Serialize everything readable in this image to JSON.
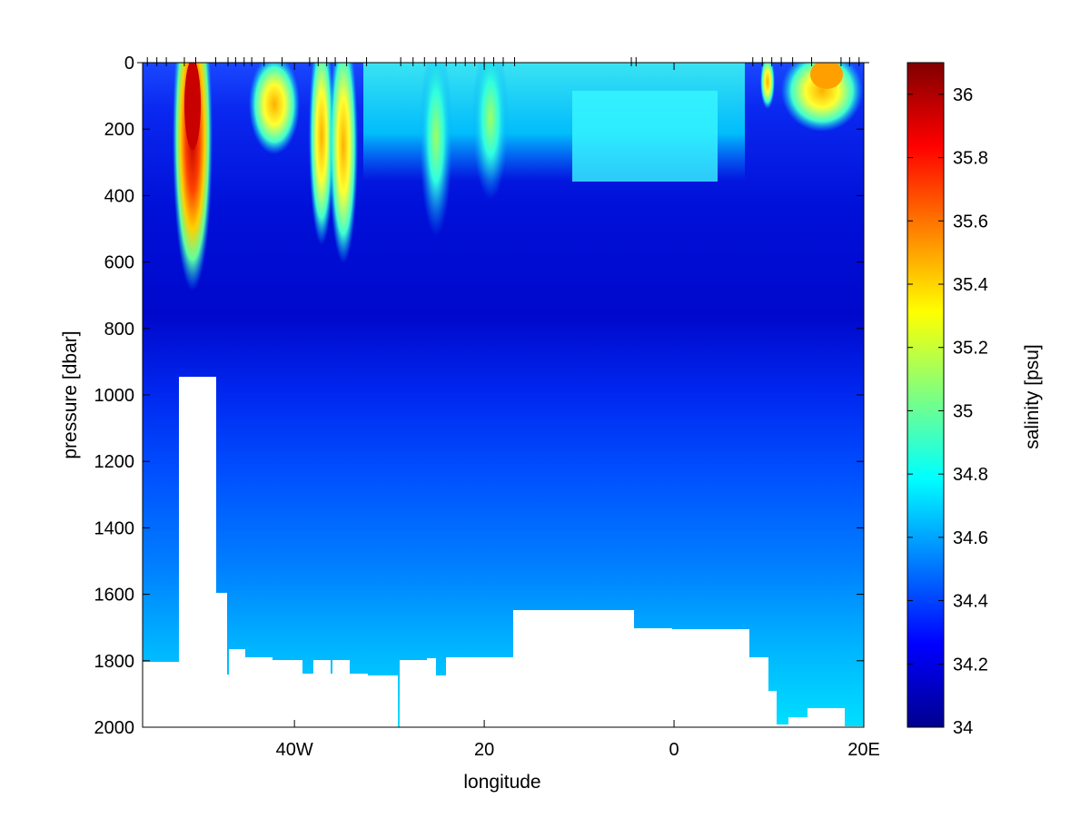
{
  "chart_data": [
    {
      "type": "heatmap",
      "title": "",
      "xlabel": "longitude",
      "ylabel": "pressure [dbar]",
      "xlim": [
        -56,
        20
      ],
      "ylim": [
        2000,
        0
      ],
      "x_ticks": [
        {
          "value": -40,
          "label": "40W"
        },
        {
          "value": -20,
          "label": "20"
        },
        {
          "value": 0,
          "label": "0"
        },
        {
          "value": 20,
          "label": "20E"
        }
      ],
      "y_ticks": [
        {
          "value": 0,
          "label": "0"
        },
        {
          "value": 200,
          "label": "200"
        },
        {
          "value": 400,
          "label": "400"
        },
        {
          "value": 600,
          "label": "600"
        },
        {
          "value": 800,
          "label": "800"
        },
        {
          "value": 1000,
          "label": "1000"
        },
        {
          "value": 1200,
          "label": "1200"
        },
        {
          "value": 1400,
          "label": "1400"
        },
        {
          "value": 1600,
          "label": "1600"
        },
        {
          "value": 1800,
          "label": "1800"
        },
        {
          "value": 2000,
          "label": "2000"
        }
      ],
      "station_longitudes": [
        -55.5,
        -54.5,
        -53.5,
        -51.6,
        -50.4,
        -48.3,
        -47.0,
        -46.2,
        -45.3,
        -44.5,
        -43.2,
        -41.3,
        -38.4,
        -37.5,
        -36.6,
        -35.7,
        -34.5,
        -32.4,
        -28.8,
        -27.5,
        -26.3,
        -25.1,
        -24.0,
        -23.0,
        -22.0,
        -21.0,
        -20.0,
        -19.0,
        -18.0,
        -16.8,
        -4.5,
        -4.0,
        8.3,
        9.3,
        10.3,
        11.3,
        12.5,
        14.5,
        17.6,
        18.5,
        19.5
      ],
      "grid": false
    },
    {
      "type": "colorbar",
      "label": "salinity [psu]",
      "range": [
        34,
        36.1
      ],
      "ticks": [
        {
          "value": 34,
          "label": "34"
        },
        {
          "value": 34.2,
          "label": "34.2"
        },
        {
          "value": 34.4,
          "label": "34.4"
        },
        {
          "value": 34.6,
          "label": "34.6"
        },
        {
          "value": 34.8,
          "label": "34.8"
        },
        {
          "value": 35,
          "label": "35"
        },
        {
          "value": 35.2,
          "label": "35.2"
        },
        {
          "value": 35.4,
          "label": "35.4"
        },
        {
          "value": 35.6,
          "label": "35.6"
        },
        {
          "value": 35.8,
          "label": "35.8"
        },
        {
          "value": 36,
          "label": "36"
        }
      ],
      "colormap": "jet"
    }
  ]
}
